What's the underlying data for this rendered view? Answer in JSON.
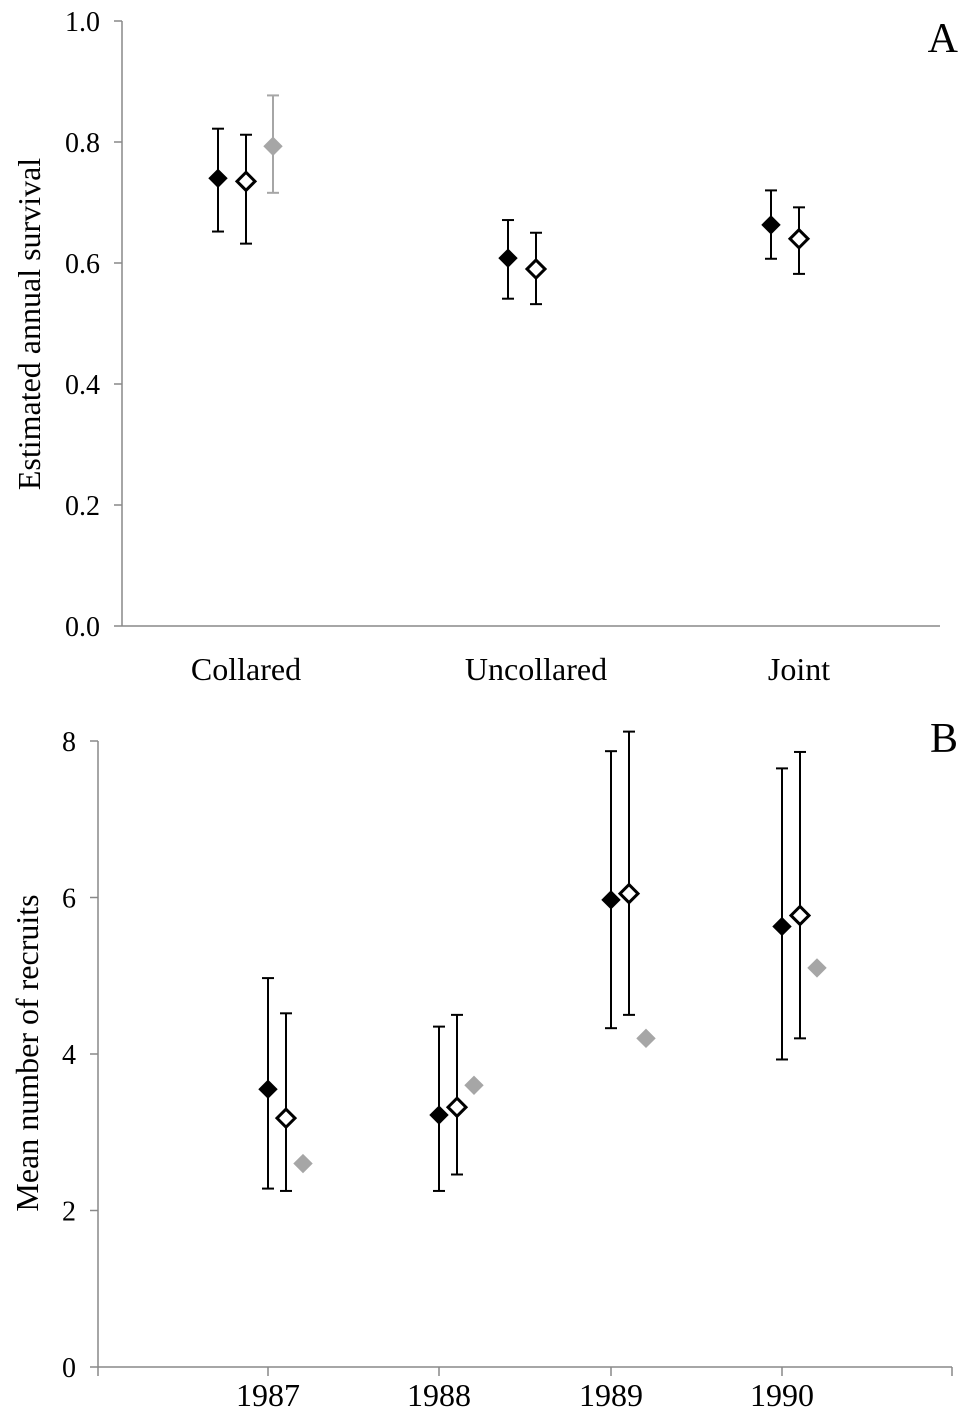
{
  "chart_data": [
    {
      "panel": "A",
      "type": "scatter",
      "ylabel": "Estimated annual survival",
      "xlabel": "",
      "ylim": [
        0,
        1
      ],
      "yticks": [
        "0.0",
        "0.2",
        "0.4",
        "0.6",
        "0.8",
        "1.0"
      ],
      "categories": [
        "Collared",
        "Uncollared",
        "Joint"
      ],
      "series": [
        {
          "marker": "filled-diamond",
          "color": "#000000",
          "values": [
            0.74,
            0.608,
            0.663
          ],
          "ci_low": [
            0.652,
            0.541,
            0.607
          ],
          "ci_high": [
            0.822,
            0.671,
            0.72
          ]
        },
        {
          "marker": "open-diamond",
          "color": "#000000",
          "values": [
            0.735,
            0.59,
            0.64
          ],
          "ci_low": [
            0.632,
            0.532,
            0.582
          ],
          "ci_high": [
            0.812,
            0.65,
            0.692
          ]
        },
        {
          "marker": "filled-diamond",
          "color": "#a6a6a6",
          "values": [
            0.793,
            null,
            null
          ],
          "ci_low": [
            0.716,
            null,
            null
          ],
          "ci_high": [
            0.877,
            null,
            null
          ]
        }
      ]
    },
    {
      "panel": "B",
      "type": "scatter",
      "ylabel": "Mean number of recruits",
      "xlabel": "",
      "ylim": [
        0,
        8
      ],
      "yticks": [
        "0",
        "2",
        "4",
        "6",
        "8"
      ],
      "categories": [
        "1987",
        "1988",
        "1989",
        "1990"
      ],
      "series": [
        {
          "marker": "filled-diamond",
          "color": "#000000",
          "values": [
            3.55,
            3.22,
            5.97,
            5.63
          ],
          "ci_low": [
            2.28,
            2.25,
            4.33,
            3.93
          ],
          "ci_high": [
            4.97,
            4.35,
            7.87,
            7.65
          ]
        },
        {
          "marker": "open-diamond",
          "color": "#000000",
          "values": [
            3.18,
            3.32,
            6.05,
            5.77
          ],
          "ci_low": [
            2.25,
            2.46,
            4.5,
            4.2
          ],
          "ci_high": [
            4.52,
            4.5,
            8.12,
            7.86
          ]
        },
        {
          "marker": "filled-diamond",
          "color": "#a6a6a6",
          "values": [
            2.6,
            3.6,
            4.2,
            5.1
          ],
          "ci_low": [
            null,
            null,
            null,
            null
          ],
          "ci_high": [
            null,
            null,
            null,
            null
          ]
        }
      ]
    }
  ]
}
